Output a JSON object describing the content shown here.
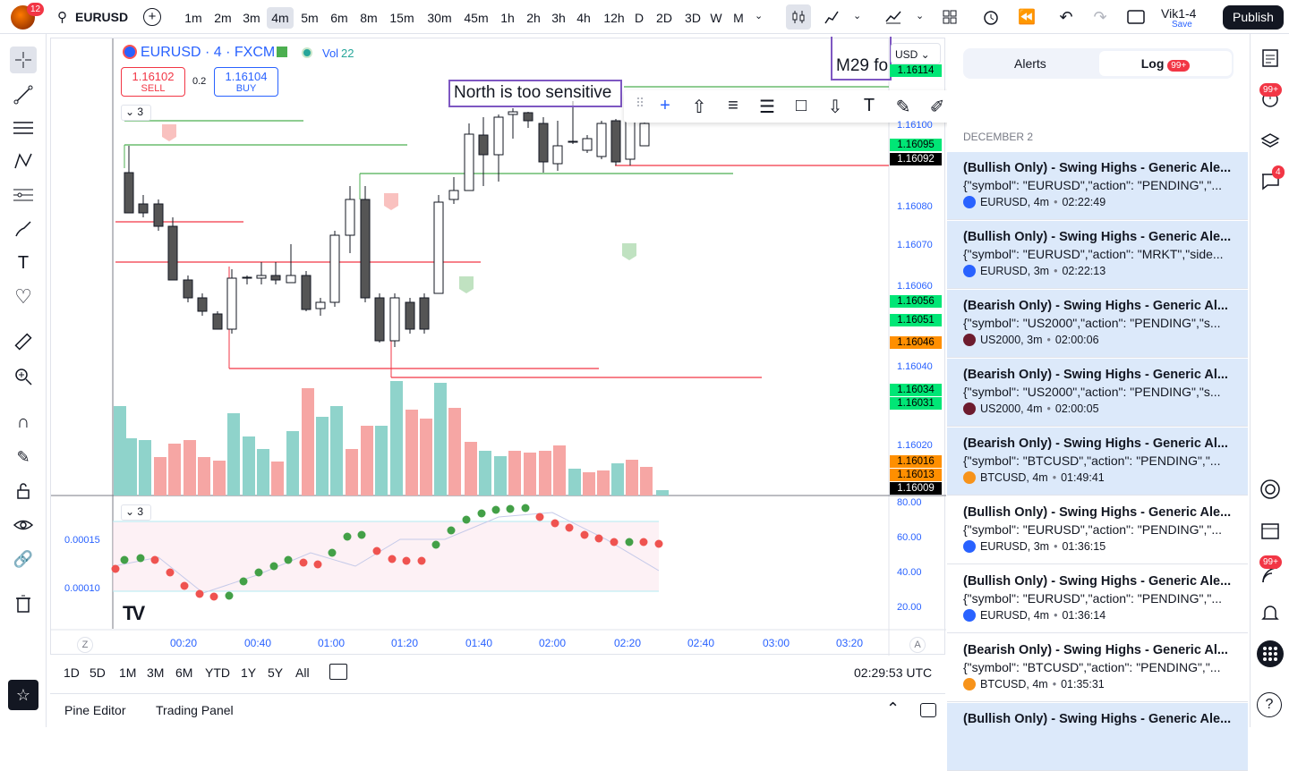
{
  "topbar": {
    "notif_count": "12",
    "symbol": "EURUSD",
    "timeframes": [
      "1m",
      "2m",
      "3m",
      "4m",
      "5m",
      "6m",
      "8m",
      "15m",
      "30m",
      "45m",
      "1h",
      "2h",
      "3h",
      "4h",
      "12h",
      "D",
      "2D",
      "3D",
      "W",
      "M"
    ],
    "active_tf": "4m",
    "layout_name": "Vik1-4",
    "save_label": "Save",
    "publish_label": "Publish"
  },
  "legend": {
    "title": "EURUSD · 4 · FXCM",
    "vol_label": "Vol",
    "vol_value": "22",
    "sell_price": "1.16102",
    "sell_label": "SELL",
    "spread": "0.2",
    "buy_price": "1.16104",
    "buy_label": "BUY",
    "collapse_count": "3",
    "osc_count": "3"
  },
  "annotation": {
    "text": "North is too sensitive",
    "partial_text": "M29 fo"
  },
  "currency": "USD",
  "price_axis": {
    "labels": [
      "1.16080",
      "1.16070",
      "1.16060",
      "1.16040",
      "1.16020",
      "1.16100"
    ],
    "osc_labels": [
      "80.00",
      "60.00",
      "40.00",
      "20.00"
    ],
    "osc_left": [
      "0.00015",
      "0.00010"
    ],
    "boxes": [
      {
        "v": "1.16114",
        "bg": "#00e676",
        "fg": "#000"
      },
      {
        "v": "1.16095",
        "bg": "#00e676",
        "fg": "#000"
      },
      {
        "v": "1.16092",
        "bg": "#000000",
        "fg": "#fff"
      },
      {
        "v": "1.16056",
        "bg": "#00e676",
        "fg": "#000"
      },
      {
        "v": "1.16051",
        "bg": "#00e676",
        "fg": "#000"
      },
      {
        "v": "1.16046",
        "bg": "#ff8f00",
        "fg": "#000"
      },
      {
        "v": "1.16034",
        "bg": "#00e676",
        "fg": "#000"
      },
      {
        "v": "1.16031",
        "bg": "#00e676",
        "fg": "#000"
      },
      {
        "v": "1.16016",
        "bg": "#ff8f00",
        "fg": "#000"
      },
      {
        "v": "1.16013",
        "bg": "#ff8f00",
        "fg": "#000"
      },
      {
        "v": "1.16009",
        "bg": "#000000",
        "fg": "#fff"
      }
    ]
  },
  "time_axis": {
    "labels": [
      "00:20",
      "00:40",
      "01:00",
      "01:20",
      "01:40",
      "02:00",
      "02:20",
      "02:40",
      "03:00",
      "03:20"
    ],
    "z_label": "Z",
    "a_label": "A"
  },
  "bottom": {
    "ranges": [
      "1D",
      "5D",
      "1M",
      "3M",
      "6M",
      "YTD",
      "1Y",
      "5Y",
      "All"
    ],
    "clock": "02:29:53 UTC",
    "tabs": [
      "Pine Editor",
      "Trading Panel"
    ]
  },
  "panel": {
    "tab_alerts": "Alerts",
    "tab_log": "Log",
    "log_badge": "99+",
    "date": "DECEMBER 2",
    "alerts": [
      {
        "title": "(Bullish Only) - Swing Highs - Generic Ale...",
        "msg": "{\"symbol\": \"EURUSD\",\"action\": \"PENDING\",\"...",
        "sym": "EURUSD, 4m",
        "time": "02:22:49",
        "hl": true,
        "icon": "eu"
      },
      {
        "title": "(Bullish Only) - Swing Highs - Generic Ale...",
        "msg": "{\"symbol\": \"EURUSD\",\"action\": \"MRKT\",\"side...",
        "sym": "EURUSD, 3m",
        "time": "02:22:13",
        "hl": true,
        "icon": "eu"
      },
      {
        "title": "(Bearish Only) - Swing Highs - Generic Al...",
        "msg": "{\"symbol\": \"US2000\",\"action\": \"PENDING\",\"s...",
        "sym": "US2000, 3m",
        "time": "02:00:06",
        "hl": true,
        "icon": "us"
      },
      {
        "title": "(Bearish Only) - Swing Highs - Generic Al...",
        "msg": "{\"symbol\": \"US2000\",\"action\": \"PENDING\",\"s...",
        "sym": "US2000, 4m",
        "time": "02:00:05",
        "hl": true,
        "icon": "us"
      },
      {
        "title": "(Bearish Only) - Swing Highs - Generic Al...",
        "msg": "{\"symbol\": \"BTCUSD\",\"action\": \"PENDING\",\"...",
        "sym": "BTCUSD, 4m",
        "time": "01:49:41",
        "hl": true,
        "icon": "btc"
      },
      {
        "title": "(Bullish Only) - Swing Highs - Generic Ale...",
        "msg": "{\"symbol\": \"EURUSD\",\"action\": \"PENDING\",\"...",
        "sym": "EURUSD, 3m",
        "time": "01:36:15",
        "hl": false,
        "icon": "eu"
      },
      {
        "title": "(Bullish Only) - Swing Highs - Generic Ale...",
        "msg": "{\"symbol\": \"EURUSD\",\"action\": \"PENDING\",\"...",
        "sym": "EURUSD, 4m",
        "time": "01:36:14",
        "hl": false,
        "icon": "eu"
      },
      {
        "title": "(Bearish Only) - Swing Highs - Generic Al...",
        "msg": "{\"symbol\": \"BTCUSD\",\"action\": \"PENDING\",\"...",
        "sym": "BTCUSD, 4m",
        "time": "01:35:31",
        "hl": false,
        "icon": "btc"
      },
      {
        "title": "(Bullish Only) - Swing Highs - Generic Ale...",
        "msg": "",
        "sym": "",
        "time": "",
        "hl": true,
        "icon": "eu"
      }
    ]
  },
  "rightbar": {
    "badge1": "99+",
    "badge2": "4",
    "badge3": "99+"
  },
  "colors": {
    "up": "#ffffff",
    "down": "#555555",
    "bull": "#26a69a",
    "bear": "#ef5350",
    "accent": "#2962ff"
  }
}
